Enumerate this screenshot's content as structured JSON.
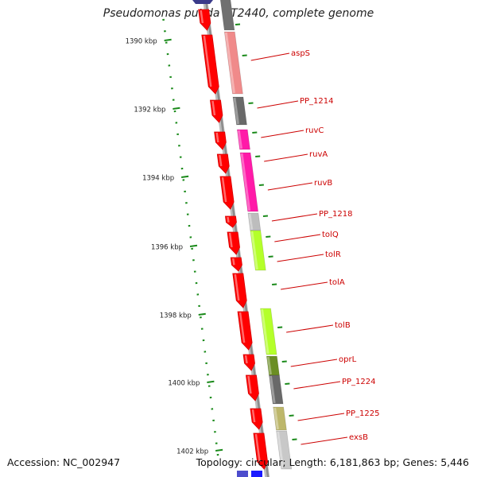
{
  "title": "Pseudomonas putida KT2440, complete genome",
  "accession": "Accession: NC_002947",
  "topology": "Topology: circular; Length: 6,181,863 bp; Genes: 5,446",
  "colors": {
    "backbone": "#8c8c8c",
    "strand_red": "#ff0000",
    "kbp_tick": "#1a8a1a",
    "label": "#cc0000"
  },
  "kbp_labels": [
    "1390 kbp",
    "1392 kbp",
    "1394 kbp",
    "1396 kbp",
    "1398 kbp",
    "1400 kbp",
    "1402 kbp"
  ],
  "genes": [
    {
      "name": "aspS",
      "color": "#f08a8a"
    },
    {
      "name": "PP_1214",
      "color": "#696969"
    },
    {
      "name": "ruvC",
      "color": "#ff1aa8"
    },
    {
      "name": "ruvA",
      "color": "#ff1aa8"
    },
    {
      "name": "ruvB",
      "color": "#e8149c"
    },
    {
      "name": "PP_1218",
      "color": "#bdbdbd"
    },
    {
      "name": "tolQ",
      "color": "#b4ff2a"
    },
    {
      "name": "tolR",
      "color": "#b4ff2a"
    },
    {
      "name": "tolA",
      "color": "#ff0000"
    },
    {
      "name": "tolB",
      "color": "#b4ff2a"
    },
    {
      "name": "oprL",
      "color": "#6b8e23"
    },
    {
      "name": "PP_1224",
      "color": "#696969"
    },
    {
      "name": "PP_1225",
      "color": "#bdb76b"
    },
    {
      "name": "exsB",
      "color": "#c8c8c8"
    }
  ]
}
